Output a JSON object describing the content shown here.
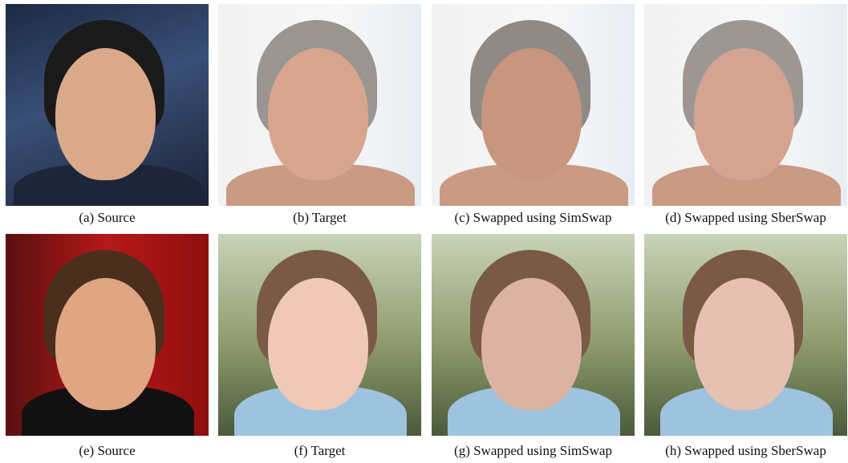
{
  "figure": {
    "panels": [
      {
        "caption": "(a) Source"
      },
      {
        "caption": "(b) Target"
      },
      {
        "caption": "(c) Swapped using SimSwap"
      },
      {
        "caption": "(d) Swapped using SberSwap"
      },
      {
        "caption": "(e) Source"
      },
      {
        "caption": "(f) Target"
      },
      {
        "caption": "(g) Swapped using SimSwap"
      },
      {
        "caption": "(h) Swapped using SberSwap"
      }
    ]
  }
}
